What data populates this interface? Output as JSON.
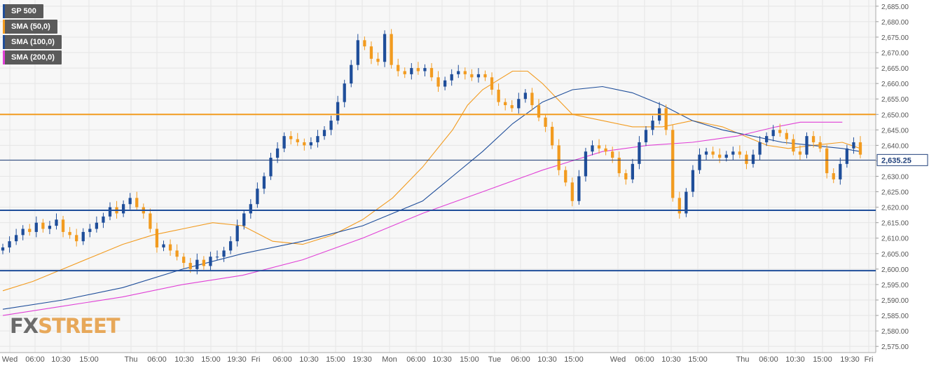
{
  "legend": [
    {
      "label": "SP 500",
      "color": "#1f4e9a"
    },
    {
      "label": "SMA (50,0)",
      "color": "#f29b1f"
    },
    {
      "label": "SMA (100,0)",
      "color": "#1f4e9a"
    },
    {
      "label": "SMA (200,0)",
      "color": "#e040d6"
    }
  ],
  "watermark": {
    "part1": "FX",
    "part2": "STREET"
  },
  "colors": {
    "bull": "#1f4e9a",
    "bear": "#f29b1f",
    "sma50": "#f29b1f",
    "sma100": "#1f4e9a",
    "sma200": "#e040d6",
    "grid": "#e6e6e6",
    "background": "#f7f7f7",
    "hline_orange": "#f29b1f",
    "hline_blue": "#1f4e9a"
  },
  "chart_data": {
    "type": "candlestick",
    "title": "",
    "ylim": [
      2573,
      2687
    ],
    "y_ticks": [
      "2,575.00",
      "2,580.00",
      "2,585.00",
      "2,590.00",
      "2,595.00",
      "2,600.00",
      "2,605.00",
      "2,610.00",
      "2,615.00",
      "2,620.00",
      "2,625.00",
      "2,630.00",
      "2,635.00",
      "2,640.00",
      "2,645.00",
      "2,650.00",
      "2,655.00",
      "2,660.00",
      "2,665.00",
      "2,670.00",
      "2,675.00",
      "2,680.00",
      "2,685.00"
    ],
    "x_ticks": [
      "Wed",
      "06:00",
      "10:30",
      "15:00",
      "Thu",
      "06:00",
      "10:30",
      "15:00",
      "19:30",
      "Fri",
      "06:00",
      "10:30",
      "15:00",
      "19:30",
      "Mon",
      "06:00",
      "10:30",
      "15:00",
      "Tue",
      "06:00",
      "10:30",
      "15:00",
      "Wed",
      "06:00",
      "10:30",
      "15:00",
      "Thu",
      "06:00",
      "10:30",
      "15:00",
      "19:30",
      "Fri"
    ],
    "current_price": 2635.25,
    "current_price_label": "2,635.25",
    "horizontal_levels": [
      {
        "value": 2650,
        "color": "orange"
      },
      {
        "value": 2619,
        "color": "blue"
      },
      {
        "value": 2599.5,
        "color": "blue"
      }
    ],
    "series": [
      {
        "name": "SP 500",
        "kind": "candles",
        "close": [
          2607,
          2609,
          2611,
          2613,
          2612,
          2615,
          2613,
          2614,
          2616,
          2612,
          2611,
          2609,
          2612,
          2613,
          2615,
          2617,
          2620,
          2618,
          2621,
          2623,
          2620,
          2618,
          2613,
          2607,
          2608,
          2606,
          2604,
          2602,
          2600,
          2603,
          2601,
          2604,
          2604,
          2606,
          2609,
          2614,
          2618,
          2621,
          2626,
          2630,
          2636,
          2639,
          2643,
          2642,
          2641,
          2640,
          2641,
          2643,
          2645,
          2648,
          2654,
          2660,
          2666,
          2674,
          2672,
          2668,
          2667,
          2676,
          2666,
          2664,
          2663,
          2665,
          2664,
          2665,
          2662,
          2659,
          2661,
          2663,
          2664,
          2663,
          2662,
          2663,
          2662,
          2658,
          2654,
          2653,
          2652,
          2655,
          2657,
          2653,
          2649,
          2646,
          2640,
          2632,
          2628,
          2622,
          2630,
          2638,
          2640,
          2639,
          2638,
          2636,
          2631,
          2629,
          2634,
          2641,
          2645,
          2648,
          2652,
          2645,
          2623,
          2618,
          2625,
          2632,
          2637,
          2638,
          2637,
          2636,
          2637,
          2638,
          2637,
          2634,
          2637,
          2641,
          2643,
          2645,
          2644,
          2642,
          2638,
          2637,
          2643,
          2641,
          2639,
          2631,
          2629,
          2634,
          2639,
          2641,
          2637
        ]
      },
      {
        "name": "SMA (50,0)",
        "kind": "line",
        "points": [
          [
            0,
            2593
          ],
          [
            10,
            2596
          ],
          [
            20,
            2600
          ],
          [
            30,
            2604
          ],
          [
            40,
            2608
          ],
          [
            50,
            2611
          ],
          [
            60,
            2613
          ],
          [
            70,
            2615
          ],
          [
            80,
            2614
          ],
          [
            90,
            2609
          ],
          [
            100,
            2608
          ],
          [
            110,
            2611
          ],
          [
            120,
            2616
          ],
          [
            130,
            2623
          ],
          [
            140,
            2633
          ],
          [
            150,
            2645
          ],
          [
            155,
            2653
          ],
          [
            160,
            2658
          ],
          [
            165,
            2661
          ],
          [
            170,
            2664
          ],
          [
            175,
            2664
          ],
          [
            180,
            2660
          ],
          [
            185,
            2655
          ],
          [
            190,
            2650
          ],
          [
            200,
            2648
          ],
          [
            210,
            2646
          ],
          [
            220,
            2646
          ],
          [
            230,
            2648
          ],
          [
            240,
            2646
          ],
          [
            250,
            2642
          ],
          [
            255,
            2640
          ],
          [
            262,
            2639
          ],
          [
            270,
            2640
          ],
          [
            280,
            2641
          ],
          [
            286,
            2639
          ]
        ]
      },
      {
        "name": "SMA (100,0)",
        "kind": "line",
        "points": [
          [
            0,
            2587
          ],
          [
            20,
            2590
          ],
          [
            40,
            2594
          ],
          [
            60,
            2600
          ],
          [
            80,
            2605
          ],
          [
            100,
            2609
          ],
          [
            120,
            2614
          ],
          [
            140,
            2622
          ],
          [
            150,
            2630
          ],
          [
            160,
            2638
          ],
          [
            170,
            2647
          ],
          [
            180,
            2654
          ],
          [
            190,
            2658
          ],
          [
            200,
            2659
          ],
          [
            210,
            2657
          ],
          [
            220,
            2653
          ],
          [
            230,
            2648
          ],
          [
            240,
            2645
          ],
          [
            250,
            2643
          ],
          [
            260,
            2641
          ],
          [
            270,
            2640
          ],
          [
            280,
            2639
          ],
          [
            286,
            2638
          ]
        ]
      },
      {
        "name": "SMA (200,0)",
        "kind": "line",
        "points": [
          [
            0,
            2585
          ],
          [
            20,
            2588
          ],
          [
            40,
            2591
          ],
          [
            60,
            2595
          ],
          [
            80,
            2598
          ],
          [
            100,
            2603
          ],
          [
            120,
            2610
          ],
          [
            140,
            2618
          ],
          [
            160,
            2625
          ],
          [
            180,
            2632
          ],
          [
            190,
            2635
          ],
          [
            200,
            2638
          ],
          [
            215,
            2640
          ],
          [
            230,
            2641
          ],
          [
            245,
            2643
          ],
          [
            258,
            2646
          ],
          [
            266,
            2647.5
          ],
          [
            280,
            2647.5
          ]
        ]
      }
    ]
  }
}
